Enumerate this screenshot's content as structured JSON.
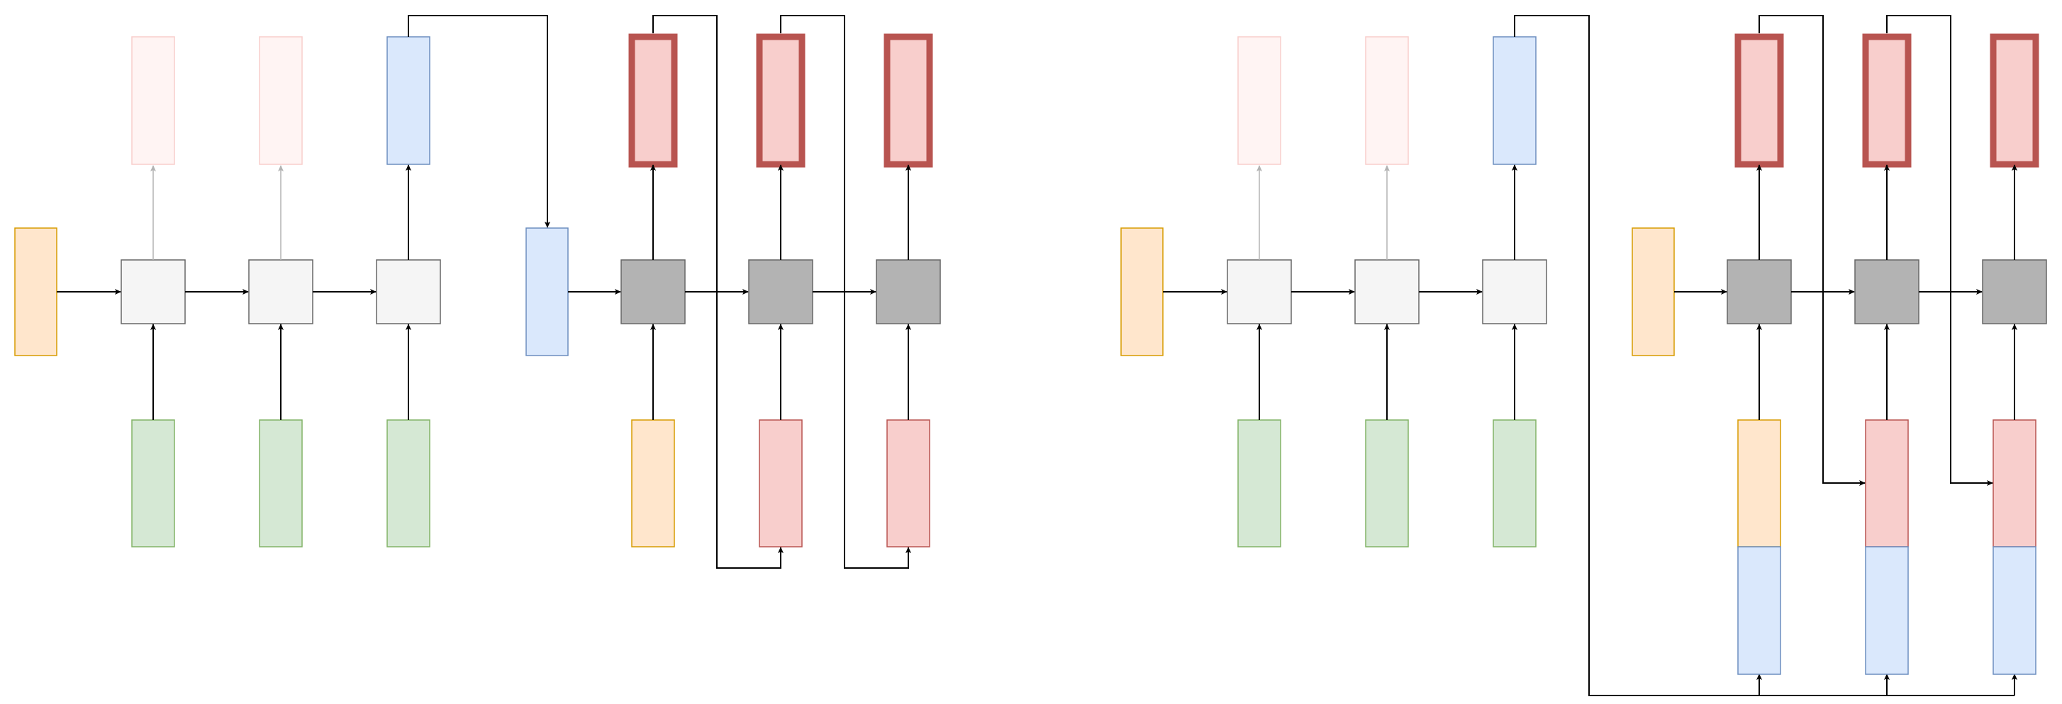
{
  "colors": {
    "orange_fill": "#ffe6cc",
    "orange_stroke": "#d79b00",
    "green_fill": "#d5e8d4",
    "green_stroke": "#82b366",
    "blue_fill": "#dae8fc",
    "blue_stroke": "#6c8ebf",
    "red_fill": "#f8cecc",
    "red_stroke": "#b85450",
    "red_light_stroke": "#b85450",
    "faded_fill": "#fff4f3",
    "faded_stroke": "#f8cecc",
    "cell_fill": "#f5f5f5",
    "cell_stroke": "#666666",
    "dark_cell_fill": "#b3b3b3",
    "dark_cell_stroke": "#666666",
    "arrow": "#000000",
    "arrow_faded": "#b3b3b3"
  },
  "diagrams": [
    {
      "name": "left-diagram",
      "description_labels": []
    },
    {
      "name": "right-diagram",
      "description_labels": []
    }
  ]
}
